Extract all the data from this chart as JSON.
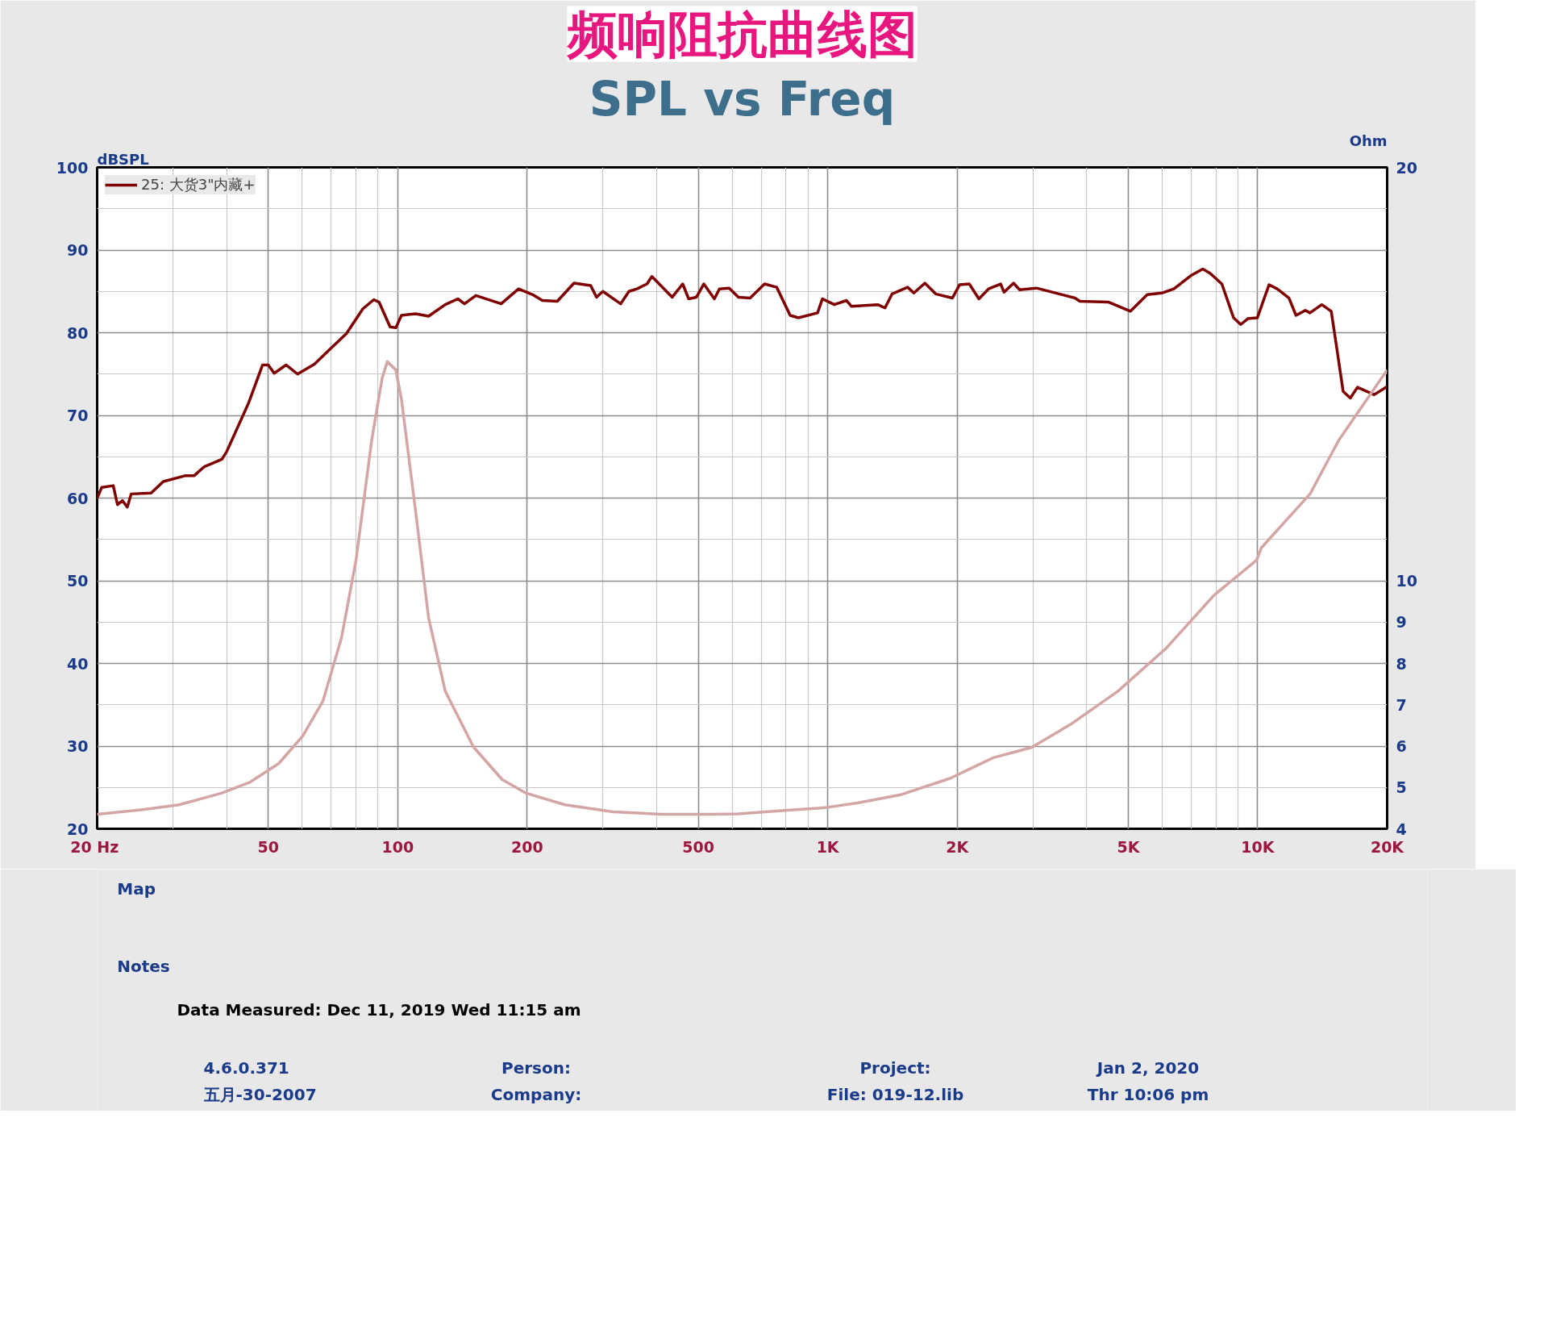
{
  "chart_data": {
    "type": "line",
    "title": "频响阻抗曲线图",
    "subtitle": "SPL vs Freq",
    "ylabel": "dBSPL",
    "y2label": "Ohm",
    "log": "x",
    "xlim": [
      20,
      20000
    ],
    "xticks": [
      {
        "value": 20,
        "label": "20  Hz"
      },
      50,
      100,
      200,
      500,
      {
        "value": 1000,
        "label": "1K"
      },
      {
        "value": 2000,
        "label": "2K"
      },
      {
        "value": 5000,
        "label": "5K"
      },
      {
        "value": 10000,
        "label": "10K"
      },
      {
        "value": 20000,
        "label": "20K"
      }
    ],
    "ylim": [
      20,
      100
    ],
    "yticks": [
      20,
      30,
      40,
      50,
      60,
      70,
      80,
      90,
      100
    ],
    "y2lim": [
      4,
      20
    ],
    "y2ticks": [
      4,
      5,
      6,
      7,
      8,
      9,
      10,
      20
    ],
    "grid": true,
    "legend": "top left",
    "series": [
      {
        "name": "25: 大货3\"内藏+",
        "color": "#800000",
        "x": [
          20,
          20.5,
          21.8,
          22.3,
          22.9,
          23.5,
          24,
          26.7,
          28.5,
          32,
          33.6,
          35.5,
          39,
          40,
          45,
          48.5,
          50,
          51.6,
          55,
          58.5,
          64,
          70.5,
          76,
          83,
          88,
          90.5,
          96,
          99,
          102,
          110,
          118,
          129,
          138,
          143,
          152,
          174,
          191,
          206,
          217,
          235,
          257,
          281,
          290,
          300,
          330,
          345,
          360,
          380,
          390,
          435,
          460,
          475,
          495,
          515,
          545,
          560,
          590,
          620,
          660,
          713,
          761,
          818,
          855,
          947,
          972,
          1036,
          1106,
          1135,
          1307,
          1359,
          1412,
          1534,
          1586,
          1683,
          1782,
          1950,
          2026,
          2134,
          2247,
          2366,
          2524,
          2571,
          2705,
          2795,
          3057,
          3571,
          3760,
          3858,
          4502,
          5059,
          5535,
          5982,
          6384,
          6986,
          7451,
          7748,
          8253,
          8788,
          9131,
          9487,
          9977,
          10625,
          11100,
          11817,
          12277,
          12907,
          13233,
          14092,
          14823,
          15205,
          15800,
          16419,
          17060,
          17951,
          18648,
          20000
        ],
        "values": [
          60.0,
          61.3,
          61.5,
          59.2,
          59.7,
          58.9,
          60.5,
          60.6,
          62.0,
          62.7,
          62.7,
          63.8,
          64.7,
          65.6,
          71.5,
          76.1,
          76.1,
          75.1,
          76.1,
          75.0,
          76.2,
          78.3,
          79.9,
          82.9,
          84.0,
          83.7,
          80.7,
          80.6,
          82.1,
          82.3,
          82.0,
          83.4,
          84.1,
          83.5,
          84.5,
          83.5,
          85.3,
          84.6,
          83.9,
          83.8,
          86.0,
          85.7,
          84.3,
          85.0,
          83.5,
          85.0,
          85.3,
          85.9,
          86.8,
          84.3,
          85.9,
          84.1,
          84.3,
          85.9,
          84.1,
          85.3,
          85.4,
          84.3,
          84.2,
          85.9,
          85.5,
          82.1,
          81.8,
          82.4,
          84.1,
          83.4,
          83.9,
          83.2,
          83.4,
          83.0,
          84.7,
          85.5,
          84.8,
          86.0,
          84.7,
          84.2,
          85.8,
          85.9,
          84.1,
          85.3,
          85.9,
          84.9,
          86.0,
          85.2,
          85.4,
          84.5,
          84.2,
          83.8,
          83.7,
          82.6,
          84.6,
          84.8,
          85.3,
          86.9,
          87.7,
          87.2,
          85.9,
          81.8,
          81.0,
          81.7,
          81.8,
          85.8,
          85.3,
          84.2,
          82.1,
          82.7,
          82.4,
          83.4,
          82.6,
          78.8,
          72.9,
          72.1,
          73.4,
          72.9,
          72.5,
          73.5
        ]
      },
      {
        "color": "#d4a5a5",
        "axis": "y2",
        "x": [
          20,
          25.3,
          31,
          38.9,
          45.4,
          52.9,
          60.2,
          67,
          74,
          80,
          87,
          92,
          94.6,
          99,
          102,
          110,
          118,
          129,
          150,
          175,
          199,
          245,
          317,
          410,
          533,
          620,
          781,
          985,
          1179,
          1487,
          1925,
          2427,
          2983,
          3665,
          4732,
          6114,
          7900,
          9941,
          10200,
          13235,
          15438,
          20000
        ],
        "values": [
          4.35,
          4.46,
          4.58,
          4.86,
          5.13,
          5.58,
          6.25,
          7.09,
          8.62,
          10.5,
          13.4,
          14.9,
          15.3,
          15.1,
          14.4,
          11.7,
          9.1,
          7.33,
          5.98,
          5.19,
          4.86,
          4.58,
          4.41,
          4.35,
          4.35,
          4.36,
          4.44,
          4.51,
          4.63,
          4.83,
          5.22,
          5.72,
          5.97,
          6.52,
          7.33,
          8.36,
          9.64,
          10.5,
          10.8,
          12.1,
          13.4,
          15.1
        ]
      }
    ],
    "annotations": [
      "Map",
      "Notes",
      "Data Measured: Dec 11, 2019  Wed 11:15 am",
      "4.6.0.371",
      "五月-30-2007",
      "Person:",
      "Company:",
      "Project:",
      "File: 019-12.lib",
      "Jan 2, 2020",
      "Thr 10:06 pm"
    ]
  }
}
